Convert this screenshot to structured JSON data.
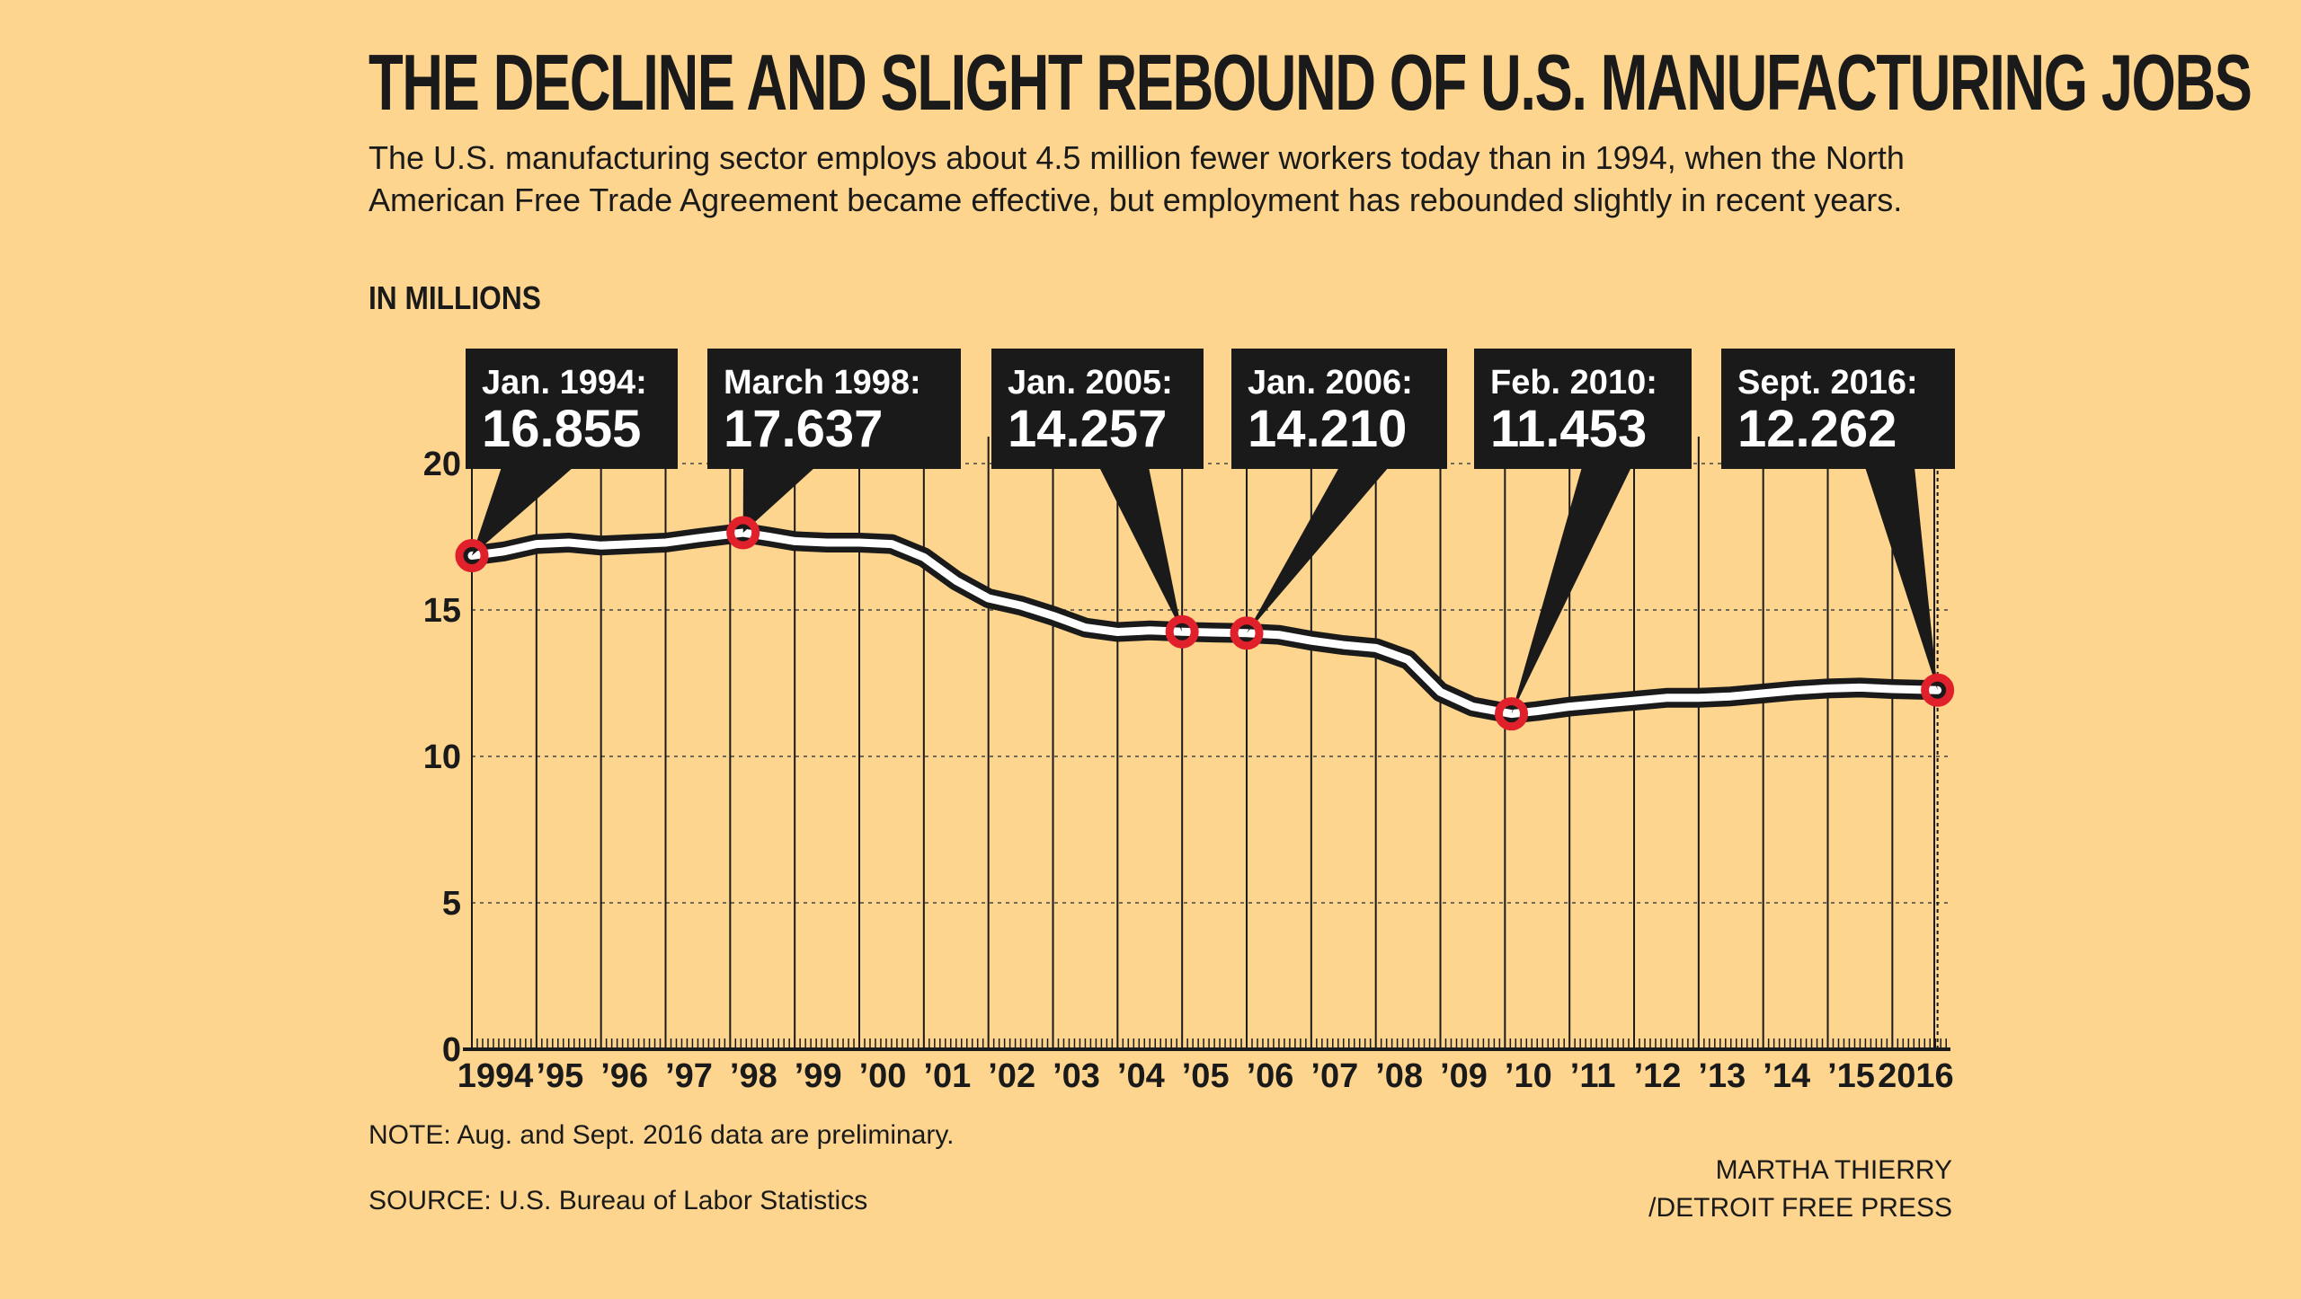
{
  "header": {
    "title": "THE DECLINE AND SLIGHT REBOUND OF U.S. MANUFACTURING JOBS",
    "subtitle": "The U.S. manufacturing sector employs about 4.5 million fewer workers today than in 1994, when the North American Free Trade Agreement became effective, but employment has rebounded slightly in recent years.",
    "unit_label": "IN MILLIONS"
  },
  "footer": {
    "note": "NOTE: Aug. and Sept. 2016 data are preliminary.",
    "source": "SOURCE: U.S. Bureau of Labor Statistics",
    "credit_line1": "MARTHA THIERRY",
    "credit_line2": "/DETROIT FREE PRESS"
  },
  "colors": {
    "background": "#fdd58e",
    "line_outer": "#1a1a1a",
    "line_inner": "#ffffff",
    "marker": "#e0202a",
    "callout_bg": "#1a1a1a",
    "callout_text": "#ffffff"
  },
  "chart_data": {
    "type": "line",
    "title": "THE DECLINE AND SLIGHT REBOUND OF U.S. MANUFACTURING JOBS",
    "ylabel": "IN MILLIONS",
    "xlabel": "",
    "ylim": [
      0,
      20
    ],
    "yticks": [
      0,
      5,
      10,
      15,
      20
    ],
    "xlim": [
      1994.0,
      2016.9
    ],
    "x_tick_labels": [
      {
        "x": 1994.0,
        "label": "1994"
      },
      {
        "x": 1995.0,
        "label": "’95"
      },
      {
        "x": 1996.0,
        "label": "’96"
      },
      {
        "x": 1997.0,
        "label": "’97"
      },
      {
        "x": 1998.0,
        "label": "’98"
      },
      {
        "x": 1999.0,
        "label": "’99"
      },
      {
        "x": 2000.0,
        "label": "’00"
      },
      {
        "x": 2001.0,
        "label": "’01"
      },
      {
        "x": 2002.0,
        "label": "’02"
      },
      {
        "x": 2003.0,
        "label": "’03"
      },
      {
        "x": 2004.0,
        "label": "’04"
      },
      {
        "x": 2005.0,
        "label": "’05"
      },
      {
        "x": 2006.0,
        "label": "’06"
      },
      {
        "x": 2007.0,
        "label": "’07"
      },
      {
        "x": 2008.0,
        "label": "’08"
      },
      {
        "x": 2009.0,
        "label": "’09"
      },
      {
        "x": 2010.0,
        "label": "’10"
      },
      {
        "x": 2011.0,
        "label": "’11"
      },
      {
        "x": 2012.0,
        "label": "’12"
      },
      {
        "x": 2013.0,
        "label": "’13"
      },
      {
        "x": 2014.0,
        "label": "’14"
      },
      {
        "x": 2015.0,
        "label": "’15"
      },
      {
        "x": 2016.0,
        "label": "2016"
      }
    ],
    "grid": "horizontal dotted, vertical solid year lines",
    "series": [
      {
        "values": [
          {
            "x": 1994.0,
            "y": 16.855
          },
          {
            "x": 1994.5,
            "y": 17.0
          },
          {
            "x": 1995.0,
            "y": 17.25
          },
          {
            "x": 1995.5,
            "y": 17.3
          },
          {
            "x": 1996.0,
            "y": 17.2
          },
          {
            "x": 1996.5,
            "y": 17.25
          },
          {
            "x": 1997.0,
            "y": 17.3
          },
          {
            "x": 1997.5,
            "y": 17.45
          },
          {
            "x": 1998.2,
            "y": 17.637
          },
          {
            "x": 1998.6,
            "y": 17.5
          },
          {
            "x": 1999.0,
            "y": 17.35
          },
          {
            "x": 1999.5,
            "y": 17.3
          },
          {
            "x": 2000.0,
            "y": 17.3
          },
          {
            "x": 2000.5,
            "y": 17.25
          },
          {
            "x": 2001.0,
            "y": 16.8
          },
          {
            "x": 2001.5,
            "y": 16.0
          },
          {
            "x": 2002.0,
            "y": 15.4
          },
          {
            "x": 2002.5,
            "y": 15.15
          },
          {
            "x": 2003.0,
            "y": 14.8
          },
          {
            "x": 2003.5,
            "y": 14.4
          },
          {
            "x": 2004.0,
            "y": 14.25
          },
          {
            "x": 2004.5,
            "y": 14.3
          },
          {
            "x": 2005.0,
            "y": 14.257
          },
          {
            "x": 2005.5,
            "y": 14.23
          },
          {
            "x": 2006.0,
            "y": 14.21
          },
          {
            "x": 2006.5,
            "y": 14.15
          },
          {
            "x": 2007.0,
            "y": 13.95
          },
          {
            "x": 2007.5,
            "y": 13.8
          },
          {
            "x": 2008.0,
            "y": 13.7
          },
          {
            "x": 2008.5,
            "y": 13.3
          },
          {
            "x": 2009.0,
            "y": 12.2
          },
          {
            "x": 2009.5,
            "y": 11.7
          },
          {
            "x": 2010.1,
            "y": 11.453
          },
          {
            "x": 2010.5,
            "y": 11.55
          },
          {
            "x": 2011.0,
            "y": 11.7
          },
          {
            "x": 2011.5,
            "y": 11.8
          },
          {
            "x": 2012.0,
            "y": 11.9
          },
          {
            "x": 2012.5,
            "y": 12.0
          },
          {
            "x": 2013.0,
            "y": 12.0
          },
          {
            "x": 2013.5,
            "y": 12.05
          },
          {
            "x": 2014.0,
            "y": 12.15
          },
          {
            "x": 2014.5,
            "y": 12.25
          },
          {
            "x": 2015.0,
            "y": 12.32
          },
          {
            "x": 2015.5,
            "y": 12.35
          },
          {
            "x": 2016.0,
            "y": 12.3
          },
          {
            "x": 2016.7,
            "y": 12.262
          }
        ]
      }
    ],
    "annotations": [
      {
        "label": "Jan. 1994:",
        "value": "16.855",
        "x": 1994.0,
        "y": 16.855
      },
      {
        "label": "March 1998:",
        "value": "17.637",
        "x": 1998.2,
        "y": 17.637
      },
      {
        "label": "Jan. 2005:",
        "value": "14.257",
        "x": 2005.0,
        "y": 14.257
      },
      {
        "label": "Jan. 2006:",
        "value": "14.210",
        "x": 2006.0,
        "y": 14.21
      },
      {
        "label": "Feb. 2010:",
        "value": "11.453",
        "x": 2010.1,
        "y": 11.453
      },
      {
        "label": "Sept. 2016:",
        "value": "12.262",
        "x": 2016.7,
        "y": 12.262
      }
    ]
  }
}
